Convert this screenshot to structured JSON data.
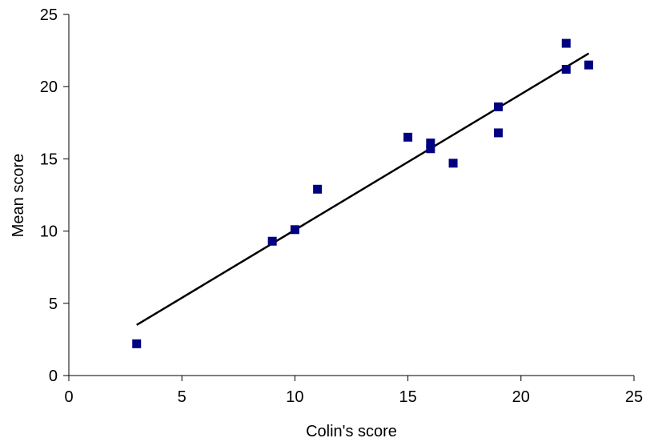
{
  "chart_data": {
    "type": "scatter",
    "title": "",
    "xlabel": "Colin's score",
    "ylabel": "Mean score",
    "xlim": [
      0,
      25
    ],
    "ylim": [
      0,
      25
    ],
    "x_ticks": [
      0,
      5,
      10,
      15,
      20,
      25
    ],
    "y_ticks": [
      0,
      5,
      10,
      15,
      20,
      25
    ],
    "x_tick_labels": [
      "0",
      "5",
      "10",
      "15",
      "20",
      "25"
    ],
    "y_tick_labels": [
      "0",
      "5",
      "10",
      "15",
      "20",
      "25"
    ],
    "grid": false,
    "legend": "none",
    "marker": "square",
    "marker_color": "#000080",
    "series": [
      {
        "x": [
          3,
          9,
          10,
          11,
          15,
          16,
          16,
          17,
          19,
          19,
          22,
          22,
          23
        ],
        "y": [
          2.2,
          9.3,
          10.1,
          12.9,
          16.5,
          16.1,
          15.7,
          14.7,
          18.6,
          16.8,
          23.0,
          21.2,
          21.5
        ]
      }
    ],
    "trendline": {
      "type": "linear",
      "color": "#000000",
      "x": [
        3,
        23
      ],
      "y": [
        3.5,
        22.3
      ]
    }
  }
}
